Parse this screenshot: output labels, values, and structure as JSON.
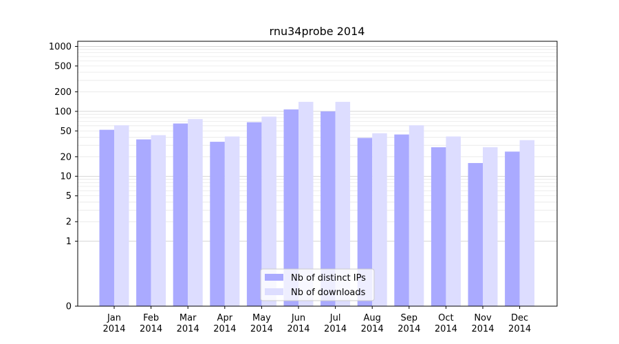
{
  "chart_data": {
    "type": "bar",
    "title": "rnu34probe 2014",
    "xlabel": "",
    "ylabel": "",
    "yscale": "symlog",
    "ylim": [
      0,
      1200
    ],
    "yticks": [
      0,
      1,
      2,
      5,
      10,
      20,
      50,
      100,
      200,
      500,
      1000
    ],
    "categories": [
      [
        "Jan",
        "2014"
      ],
      [
        "Feb",
        "2014"
      ],
      [
        "Mar",
        "2014"
      ],
      [
        "Apr",
        "2014"
      ],
      [
        "May",
        "2014"
      ],
      [
        "Jun",
        "2014"
      ],
      [
        "Jul",
        "2014"
      ],
      [
        "Aug",
        "2014"
      ],
      [
        "Sep",
        "2014"
      ],
      [
        "Oct",
        "2014"
      ],
      [
        "Nov",
        "2014"
      ],
      [
        "Dec",
        "2014"
      ]
    ],
    "series": [
      {
        "name": "Nb of distinct IPs",
        "color": "#aaaaff",
        "values": [
          52,
          37,
          65,
          34,
          68,
          107,
          100,
          39,
          44,
          28,
          16,
          24
        ]
      },
      {
        "name": "Nb of downloads",
        "color": "#ddddff",
        "values": [
          61,
          43,
          76,
          41,
          83,
          140,
          140,
          46,
          61,
          41,
          28,
          36
        ]
      }
    ],
    "grid": true,
    "legend_position": "bottom-center"
  }
}
